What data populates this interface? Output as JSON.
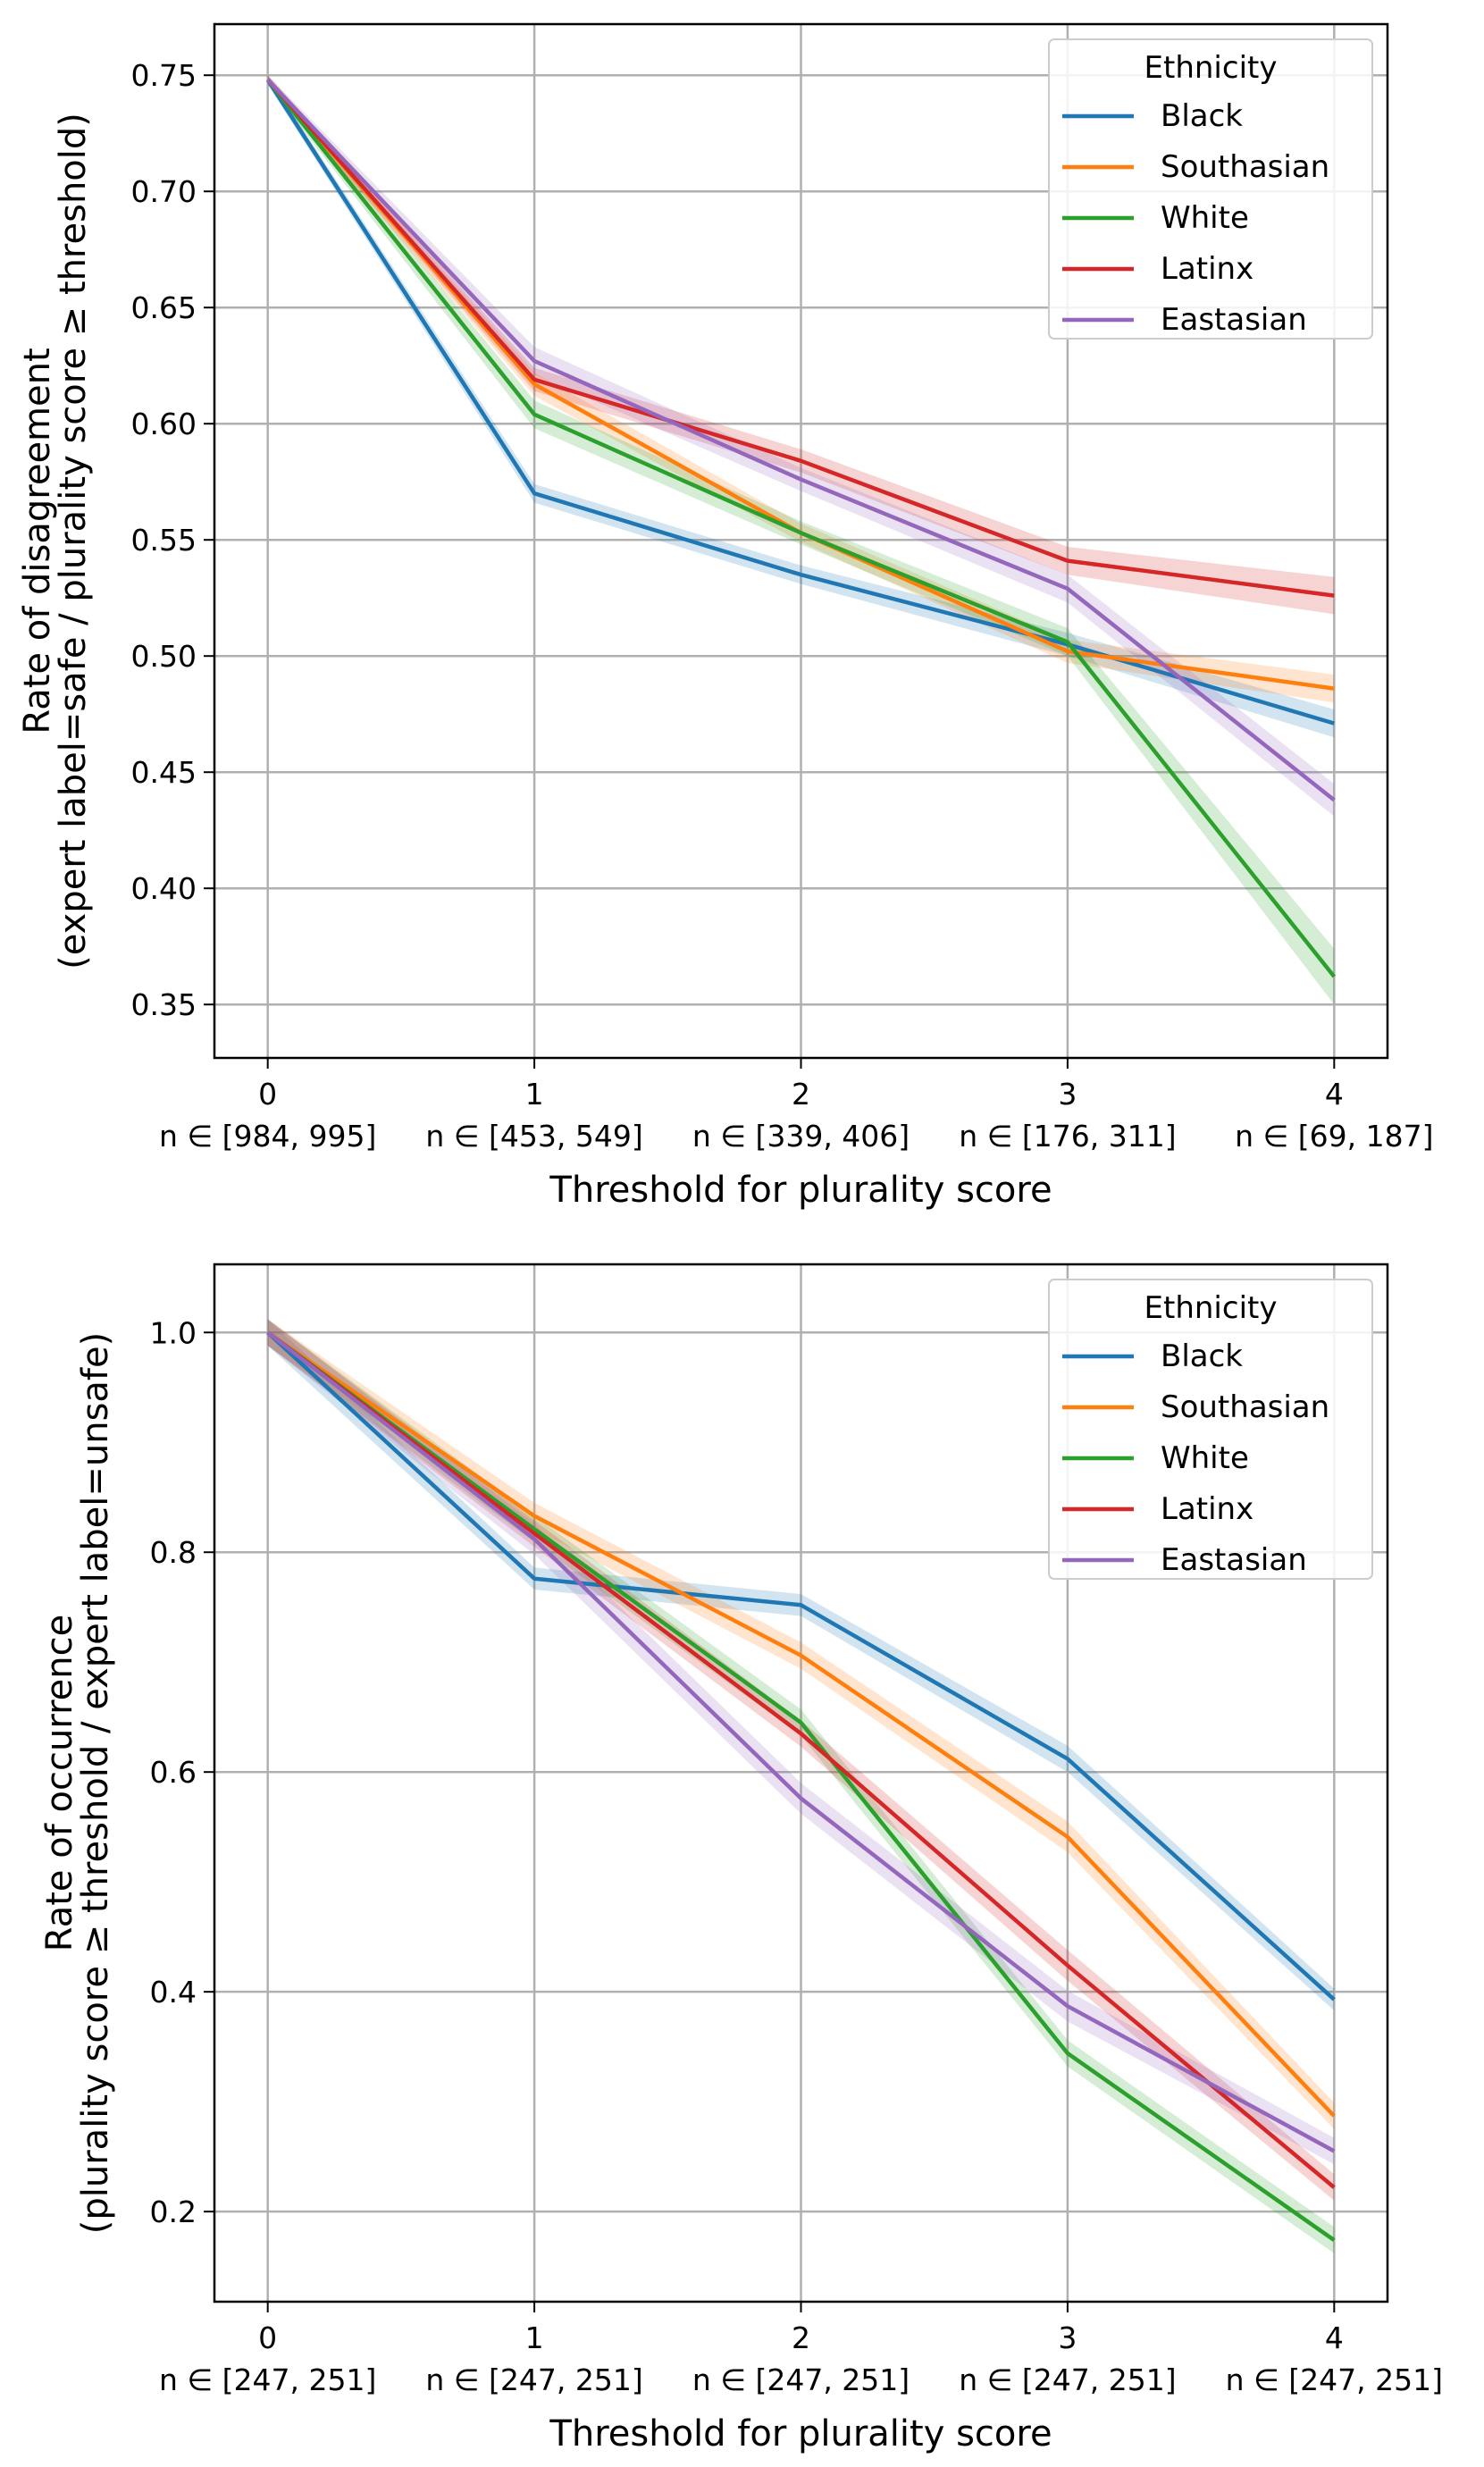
{
  "chart_data": [
    {
      "type": "line",
      "title": "",
      "xlabel": "Threshold for plurality score",
      "ylabel_lines": [
        "Rate of disagreement",
        "(expert label=safe / plurality score ≥ threshold)"
      ],
      "x": [
        0,
        1,
        2,
        3,
        4
      ],
      "xtick_labels": [
        "0",
        "1",
        "2",
        "3",
        "4"
      ],
      "xtick_sublabels": [
        "n ∈ [984, 995]",
        "n ∈ [453, 549]",
        "n ∈ [339, 406]",
        "n ∈ [176, 311]",
        "n ∈ [69, 187]"
      ],
      "yticks": [
        0.35,
        0.4,
        0.45,
        0.5,
        0.55,
        0.6,
        0.65,
        0.7,
        0.75
      ],
      "ytick_labels": [
        "0.35",
        "0.40",
        "0.45",
        "0.50",
        "0.55",
        "0.60",
        "0.65",
        "0.70",
        "0.75"
      ],
      "xlim": [
        -0.2,
        4.2
      ],
      "ylim": [
        0.327,
        0.772
      ],
      "grid": true,
      "legend": {
        "title": "Ethnicity",
        "position": "top-right"
      },
      "series": [
        {
          "name": "Black",
          "color": "#1f77b4",
          "values": [
            0.748,
            0.57,
            0.535,
            0.505,
            0.471
          ],
          "ci": [
            0.002,
            0.004,
            0.004,
            0.005,
            0.006
          ]
        },
        {
          "name": "Southasian",
          "color": "#ff7f0e",
          "values": [
            0.748,
            0.617,
            0.553,
            0.502,
            0.486
          ],
          "ci": [
            0.002,
            0.005,
            0.004,
            0.005,
            0.006
          ]
        },
        {
          "name": "White",
          "color": "#2ca02c",
          "values": [
            0.748,
            0.604,
            0.553,
            0.506,
            0.362
          ],
          "ci": [
            0.002,
            0.006,
            0.005,
            0.006,
            0.012
          ]
        },
        {
          "name": "Latinx",
          "color": "#d62728",
          "values": [
            0.748,
            0.619,
            0.584,
            0.541,
            0.526
          ],
          "ci": [
            0.002,
            0.005,
            0.005,
            0.006,
            0.008
          ]
        },
        {
          "name": "Eastasian",
          "color": "#9467bd",
          "values": [
            0.748,
            0.627,
            0.576,
            0.529,
            0.438
          ],
          "ci": [
            0.002,
            0.006,
            0.005,
            0.006,
            0.007
          ]
        }
      ]
    },
    {
      "type": "line",
      "title": "",
      "xlabel": "Threshold for plurality score",
      "ylabel_lines": [
        "Rate of occurrence",
        "(plurality score ≥ threshold / expert label=unsafe)"
      ],
      "x": [
        0,
        1,
        2,
        3,
        4
      ],
      "xtick_labels": [
        "0",
        "1",
        "2",
        "3",
        "4"
      ],
      "xtick_sublabels": [
        "n ∈ [247, 251]",
        "n ∈ [247, 251]",
        "n ∈ [247, 251]",
        "n ∈ [247, 251]",
        "n ∈ [247, 251]"
      ],
      "yticks": [
        0.2,
        0.4,
        0.6,
        0.8,
        1.0
      ],
      "ytick_labels": [
        "0.2",
        "0.4",
        "0.6",
        "0.8",
        "1.0"
      ],
      "xlim": [
        -0.2,
        4.2
      ],
      "ylim": [
        0.118,
        1.062
      ],
      "grid": true,
      "legend": {
        "title": "Ethnicity",
        "position": "top-right"
      },
      "series": [
        {
          "name": "Black",
          "color": "#1f77b4",
          "values": [
            1.0,
            0.776,
            0.752,
            0.612,
            0.393
          ],
          "ci": [
            0.012,
            0.01,
            0.01,
            0.012,
            0.01
          ]
        },
        {
          "name": "Southasian",
          "color": "#ff7f0e",
          "values": [
            1.0,
            0.833,
            0.706,
            0.541,
            0.287
          ],
          "ci": [
            0.012,
            0.012,
            0.012,
            0.014,
            0.012
          ]
        },
        {
          "name": "White",
          "color": "#2ca02c",
          "values": [
            1.0,
            0.821,
            0.645,
            0.344,
            0.174
          ],
          "ci": [
            0.012,
            0.012,
            0.012,
            0.012,
            0.012
          ]
        },
        {
          "name": "Latinx",
          "color": "#d62728",
          "values": [
            1.0,
            0.817,
            0.635,
            0.424,
            0.222
          ],
          "ci": [
            0.012,
            0.012,
            0.012,
            0.014,
            0.012
          ]
        },
        {
          "name": "Eastasian",
          "color": "#9467bd",
          "values": [
            1.0,
            0.812,
            0.576,
            0.387,
            0.255
          ],
          "ci": [
            0.012,
            0.014,
            0.014,
            0.014,
            0.012
          ]
        }
      ]
    }
  ]
}
